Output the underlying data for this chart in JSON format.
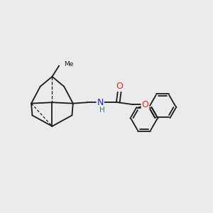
{
  "background_color": "#ebebeb",
  "bond_color": "#1a1a1a",
  "bond_width": 1.3,
  "N_color": "#2020ff",
  "O_color": "#ff2020",
  "H_color": "#2d8080",
  "figsize": [
    3.0,
    3.0
  ],
  "dpi": 100,
  "xlim": [
    0,
    10
  ],
  "ylim": [
    0,
    10
  ]
}
